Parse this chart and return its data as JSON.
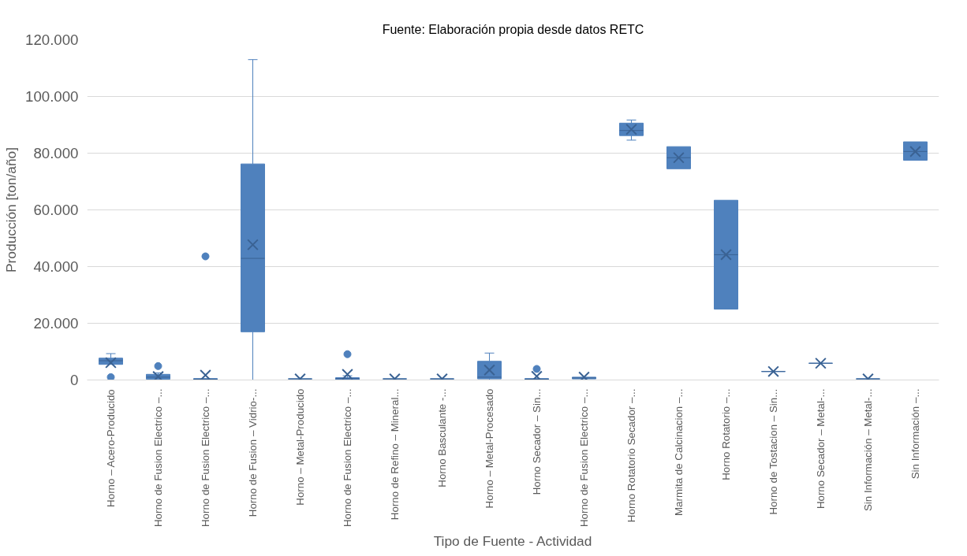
{
  "chart_data": {
    "type": "box",
    "annotations": [
      "Fuente: Elaboración propia desde datos RETC"
    ],
    "xlabel": "Tipo de Fuente - Actividad",
    "ylabel": "Producción [ton/año]",
    "categories": [
      "Horno – Acero-Producido",
      "Horno de Fusion Electrico –...",
      "Horno de Fusion Electrico –...",
      "Horno de Fusion – Vidrio-...",
      "Horno – Metal-Producido",
      "Horno de Fusion Electrico –...",
      "Horno de Refino – Mineral...",
      "Horno Basculante -...",
      "Horno – Metal-Procesado",
      "Horno Secador – Sin...",
      "Horno de Fusion Electrico –...",
      "Horno Rotatorio Secador –...",
      "Marmita de Calcinacion –...",
      "Horno Rotatorio –...",
      "Horno de Tostacion – Sin...",
      "Horno Secador – Metal-...",
      "Sin Información – Metal-...",
      "Sin Información –..."
    ],
    "color": "#4f81bd",
    "boxes": [
      {
        "low": 5500,
        "q1": 5500,
        "median": 6800,
        "q3": 7700,
        "high": 9300,
        "mean": 6100,
        "outliers": [
          1000
        ]
      },
      {
        "low": 0,
        "q1": 300,
        "median": 1000,
        "q3": 2000,
        "high": 2500,
        "mean": 1200,
        "outliers": [
          4900
        ]
      },
      {
        "low": 0,
        "q1": 0,
        "median": 300,
        "q3": 500,
        "high": 500,
        "mean": 1700,
        "outliers": [
          43600
        ]
      },
      {
        "low": 0,
        "q1": 17000,
        "median": 42900,
        "q3": 76200,
        "high": 113000,
        "mean": 47700
      },
      {
        "low": 400,
        "q1": 400,
        "median": 400,
        "q3": 400,
        "high": 400,
        "mean": 400
      },
      {
        "low": 0,
        "q1": 0,
        "median": 500,
        "q3": 800,
        "high": 1500,
        "mean": 2000,
        "outliers": [
          9100
        ]
      },
      {
        "low": 400,
        "q1": 400,
        "median": 400,
        "q3": 400,
        "high": 400,
        "mean": 400
      },
      {
        "low": 400,
        "q1": 400,
        "median": 400,
        "q3": 400,
        "high": 400,
        "mean": 400
      },
      {
        "low": 0,
        "q1": 400,
        "median": 1000,
        "q3": 6600,
        "high": 9500,
        "mean": 3500
      },
      {
        "low": 0,
        "q1": 0,
        "median": 300,
        "q3": 500,
        "high": 500,
        "mean": 1300,
        "outliers": [
          3900
        ]
      },
      {
        "low": 400,
        "q1": 400,
        "median": 700,
        "q3": 1000,
        "high": 1000,
        "mean": 1000
      },
      {
        "low": 84600,
        "q1": 86200,
        "median": 88000,
        "q3": 90600,
        "high": 91700,
        "mean": 88400
      },
      {
        "low": 74500,
        "q1": 74500,
        "median": 78400,
        "q3": 82300,
        "high": 82300,
        "mean": 78400
      },
      {
        "low": 25000,
        "q1": 25000,
        "median": 44200,
        "q3": 63400,
        "high": 63400,
        "mean": 44200
      },
      {
        "low": 3000,
        "q1": 3000,
        "median": 3000,
        "q3": 3000,
        "high": 3000,
        "mean": 3000
      },
      {
        "low": 5900,
        "q1": 5900,
        "median": 5900,
        "q3": 5900,
        "high": 5900,
        "mean": 5900
      },
      {
        "low": 400,
        "q1": 400,
        "median": 400,
        "q3": 400,
        "high": 400,
        "mean": 400
      },
      {
        "low": 77500,
        "q1": 77500,
        "median": 80600,
        "q3": 84000,
        "high": 84000,
        "mean": 80600
      }
    ],
    "ylim": [
      0,
      120000
    ],
    "yticks": [
      {
        "value": 0,
        "label": "0"
      },
      {
        "value": 20000,
        "label": "20.000"
      },
      {
        "value": 40000,
        "label": "40.000"
      },
      {
        "value": 60000,
        "label": "60.000"
      },
      {
        "value": 80000,
        "label": "80.000"
      },
      {
        "value": 100000,
        "label": "100.000"
      },
      {
        "value": 120000,
        "label": "120.000"
      }
    ],
    "grid": "y"
  }
}
